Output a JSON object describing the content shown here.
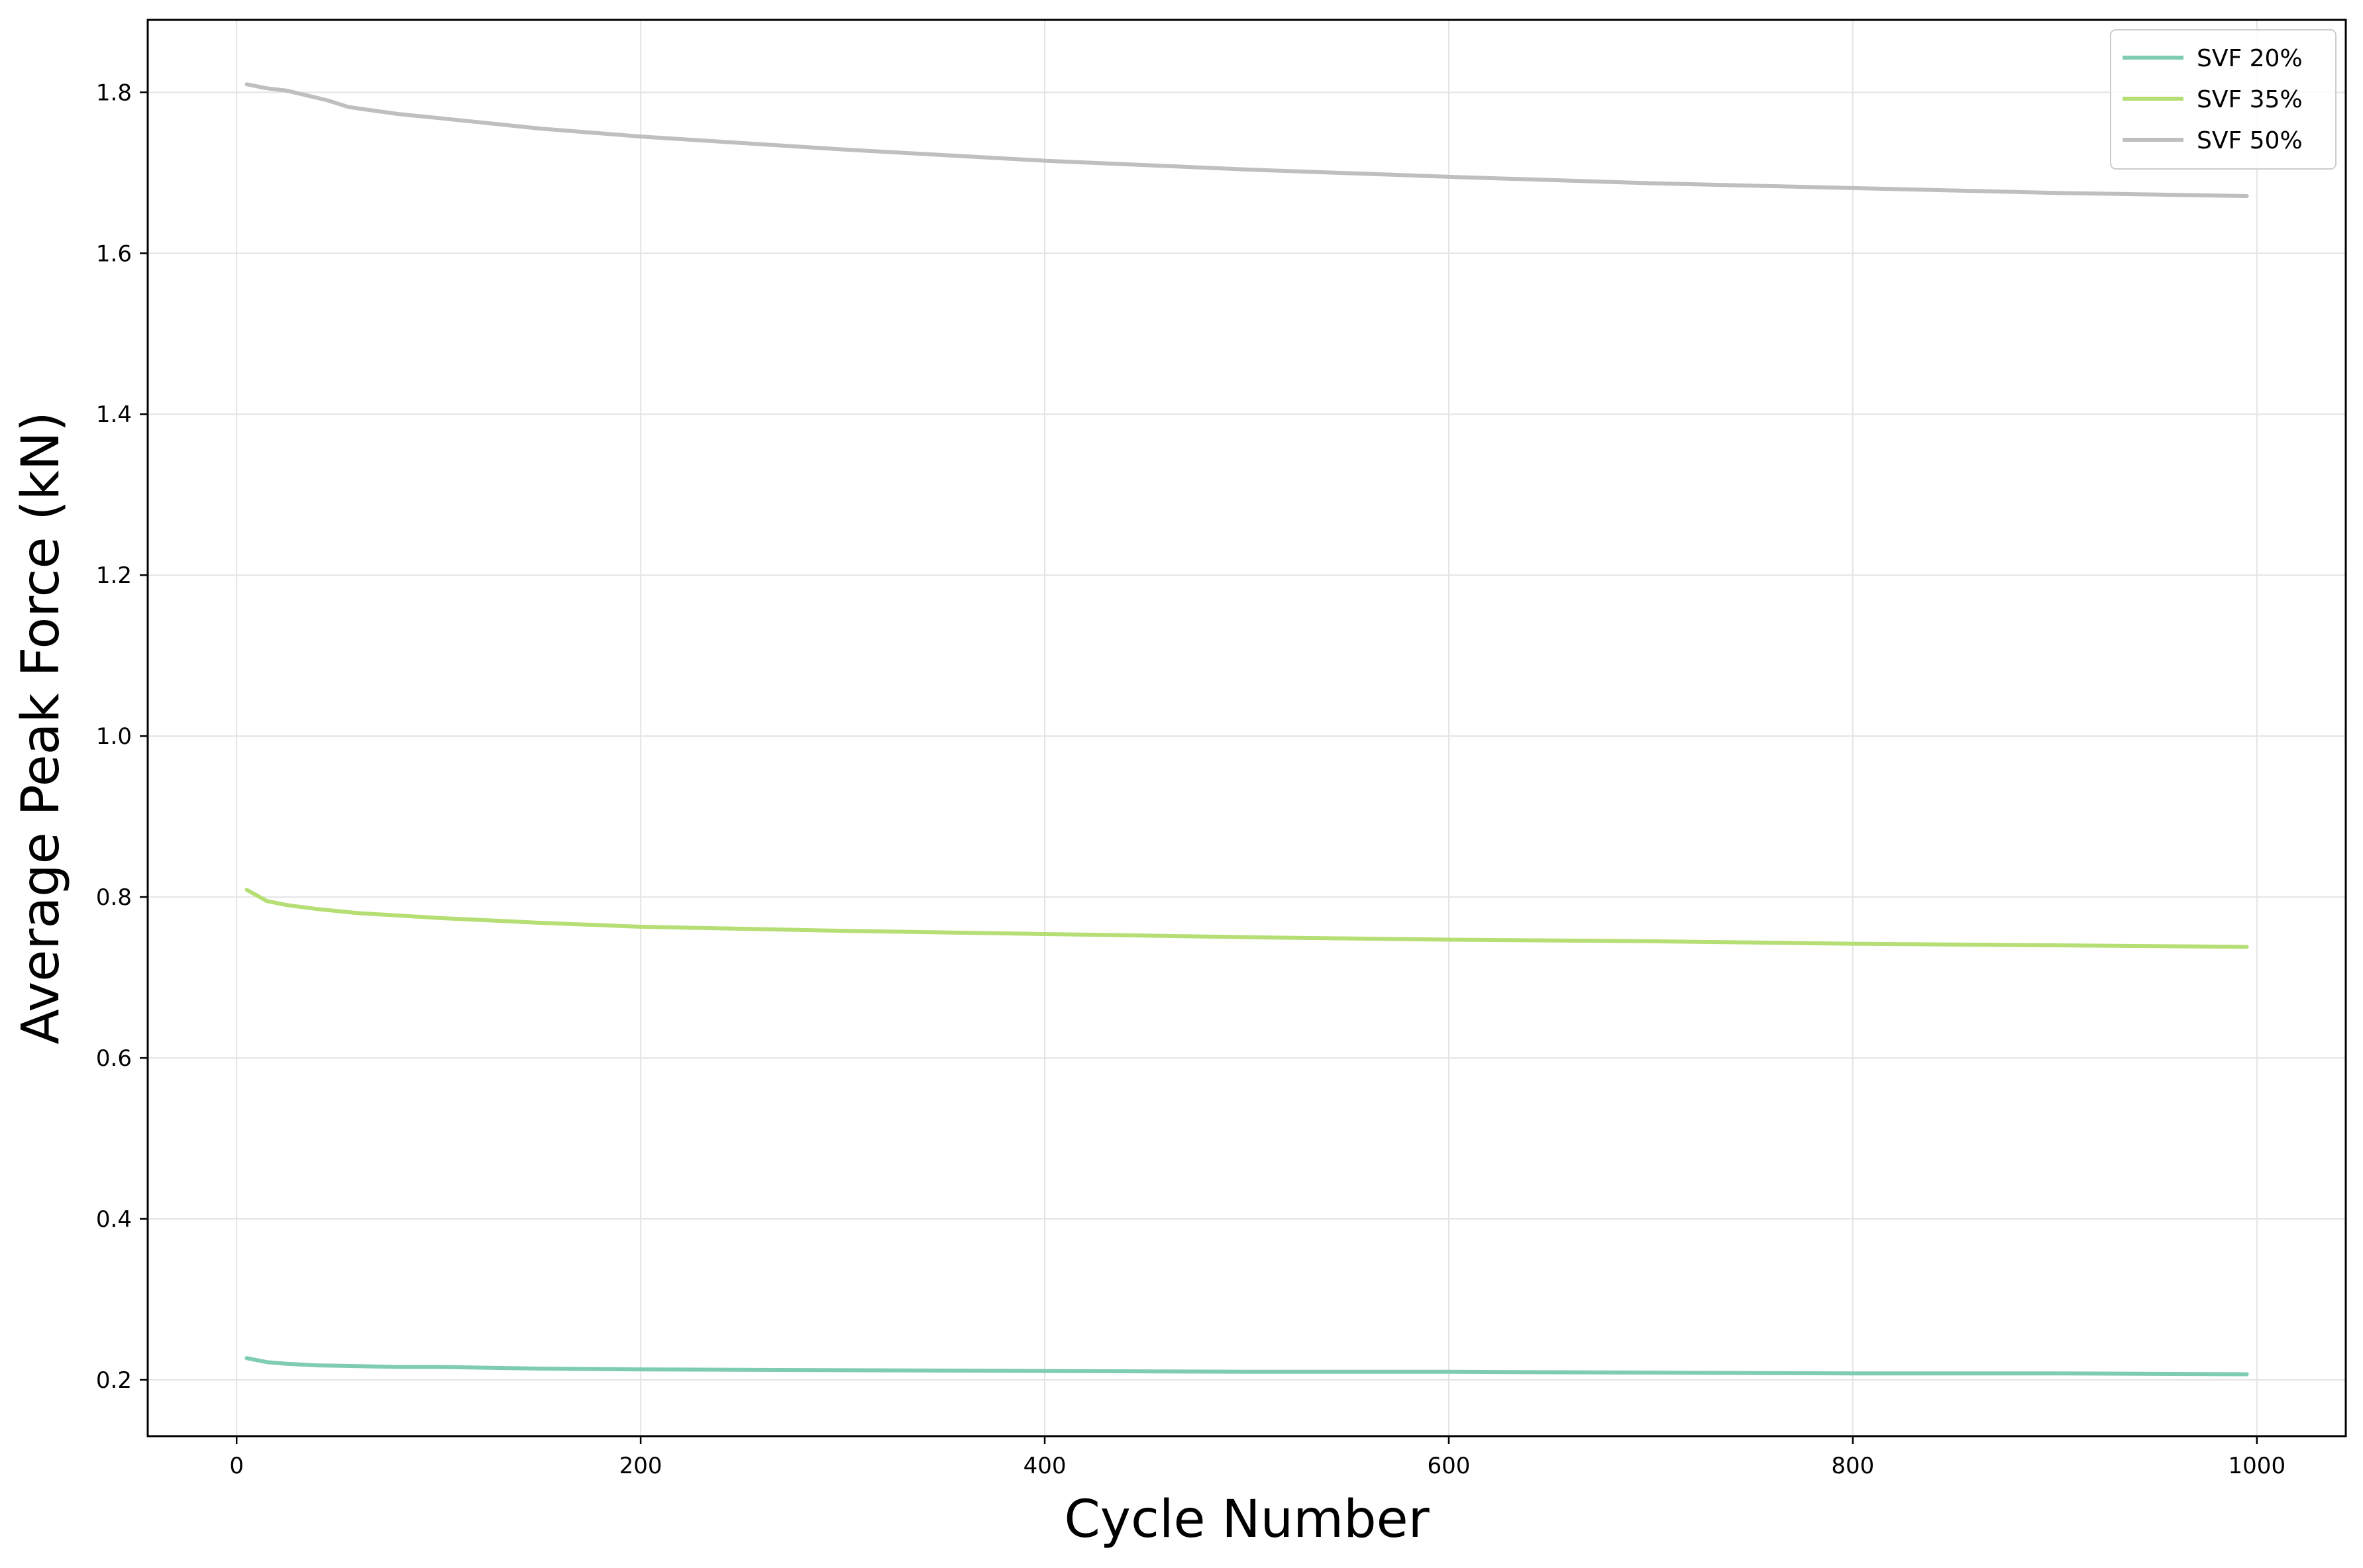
{
  "chart_data": {
    "type": "line",
    "title": "",
    "xlabel": "Cycle Number",
    "ylabel": "Average Peak Force (kN)",
    "xlim": [
      -44,
      1044
    ],
    "ylim": [
      0.13,
      1.89
    ],
    "xticks": [
      0,
      200,
      400,
      600,
      800,
      1000
    ],
    "yticks": [
      0.2,
      0.4,
      0.6,
      0.8,
      1.0,
      1.2,
      1.4,
      1.6,
      1.8
    ],
    "xtick_labels": [
      "0",
      "200",
      "400",
      "600",
      "800",
      "1000"
    ],
    "ytick_labels": [
      "0.2",
      "0.4",
      "0.6",
      "0.8",
      "1.0",
      "1.2",
      "1.4",
      "1.6",
      "1.8"
    ],
    "grid": true,
    "legend_position": "top-right",
    "series": [
      {
        "name": "SVF 20%",
        "color": "#7fcdb0",
        "x": [
          5,
          15,
          25,
          40,
          60,
          80,
          100,
          150,
          200,
          300,
          400,
          500,
          600,
          700,
          800,
          900,
          995
        ],
        "y": [
          0.227,
          0.222,
          0.22,
          0.218,
          0.217,
          0.216,
          0.216,
          0.214,
          0.213,
          0.212,
          0.211,
          0.21,
          0.21,
          0.209,
          0.208,
          0.208,
          0.207
        ]
      },
      {
        "name": "SVF 35%",
        "color": "#b5de75",
        "x": [
          5,
          15,
          25,
          40,
          60,
          80,
          100,
          150,
          200,
          300,
          400,
          500,
          600,
          700,
          800,
          900,
          995
        ],
        "y": [
          0.809,
          0.795,
          0.79,
          0.785,
          0.78,
          0.777,
          0.774,
          0.768,
          0.763,
          0.758,
          0.754,
          0.75,
          0.747,
          0.745,
          0.742,
          0.74,
          0.738
        ]
      },
      {
        "name": "SVF 50%",
        "color": "#bfbfbf",
        "x": [
          5,
          15,
          25,
          35,
          45,
          50,
          55,
          60,
          80,
          100,
          150,
          200,
          250,
          300,
          400,
          500,
          600,
          700,
          800,
          900,
          995
        ],
        "y": [
          1.81,
          1.805,
          1.802,
          1.796,
          1.79,
          1.786,
          1.782,
          1.78,
          1.773,
          1.768,
          1.755,
          1.745,
          1.737,
          1.729,
          1.715,
          1.704,
          1.695,
          1.687,
          1.681,
          1.675,
          1.671
        ]
      }
    ]
  }
}
